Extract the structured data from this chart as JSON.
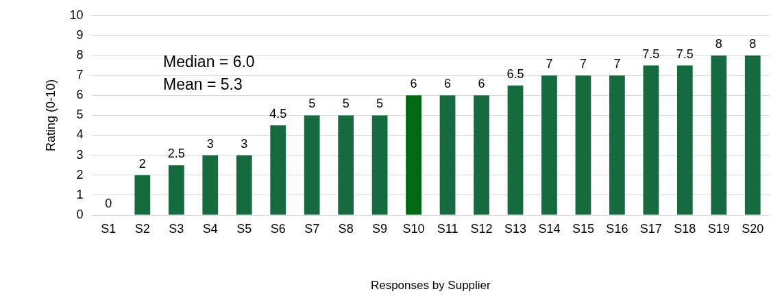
{
  "chart_data": {
    "type": "bar",
    "xlabel": "Responses by Supplier",
    "ylabel": "Rating (0-10)",
    "categories": [
      "S1",
      "S2",
      "S3",
      "S4",
      "S5",
      "S6",
      "S7",
      "S8",
      "S9",
      "S10",
      "S11",
      "S12",
      "S13",
      "S14",
      "S15",
      "S16",
      "S17",
      "S18",
      "S19",
      "S20"
    ],
    "values": [
      0,
      2,
      2.5,
      3,
      3,
      4.5,
      5,
      5,
      5,
      6,
      6,
      6,
      6.5,
      7,
      7,
      7,
      7.5,
      7.5,
      8,
      8
    ],
    "colors": [
      "#166b3e",
      "#166b3e",
      "#166b3e",
      "#166b3e",
      "#166b3e",
      "#166b3e",
      "#166b3e",
      "#166b3e",
      "#166b3e",
      "#006a12",
      "#166b3e",
      "#166b3e",
      "#166b3e",
      "#166b3e",
      "#166b3e",
      "#166b3e",
      "#166b3e",
      "#166b3e",
      "#166b3e",
      "#166b3e"
    ],
    "ylim": [
      0,
      10
    ],
    "yticks": [
      0,
      1,
      2,
      3,
      4,
      5,
      6,
      7,
      8,
      9,
      10
    ],
    "grid": "y",
    "legend": false,
    "data_labels": true,
    "annotations": [
      "Median = 6.0",
      "Mean = 5.3"
    ]
  }
}
